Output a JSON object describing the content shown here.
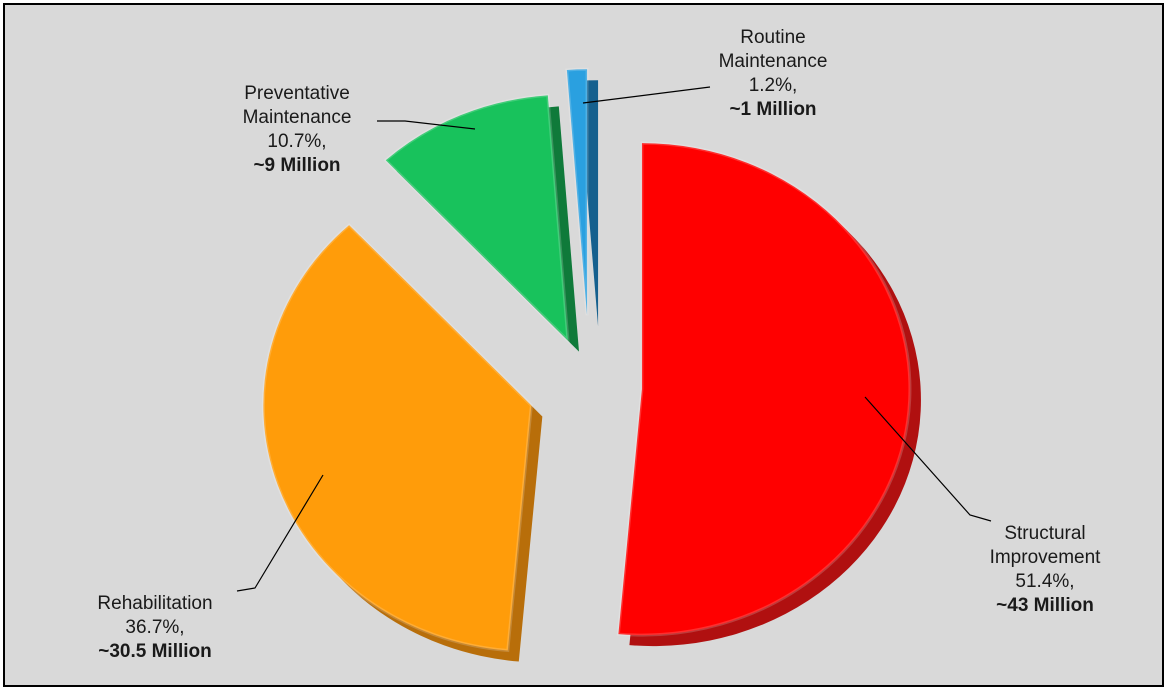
{
  "chart_data": {
    "type": "pie",
    "style": "exploded 3D pie",
    "slices": [
      {
        "name_lines": [
          "Structural",
          "Improvement"
        ],
        "percent": 51.4,
        "percent_label": "51.4%,",
        "amount_label": "~43 Million",
        "color": "#ff0000",
        "side_color": "#b01010"
      },
      {
        "name_lines": [
          "Rehabilitation"
        ],
        "percent": 36.7,
        "percent_label": "36.7%,",
        "amount_label": "~30.5 Million",
        "color": "#ff9c0a",
        "side_color": "#b86e0a"
      },
      {
        "name_lines": [
          "Preventative",
          "Maintenance"
        ],
        "percent": 10.7,
        "percent_label": "10.7%,",
        "amount_label": "~9 Million",
        "color": "#18c25c",
        "side_color": "#0f7a3a"
      },
      {
        "name_lines": [
          "Routine",
          "Maintenance"
        ],
        "percent": 1.2,
        "percent_label": "1.2%,",
        "amount_label": "~1 Million",
        "color": "#2aa0e0",
        "side_color": "#15608e"
      }
    ],
    "background_color": "#d9d9d9",
    "legend": "none"
  }
}
